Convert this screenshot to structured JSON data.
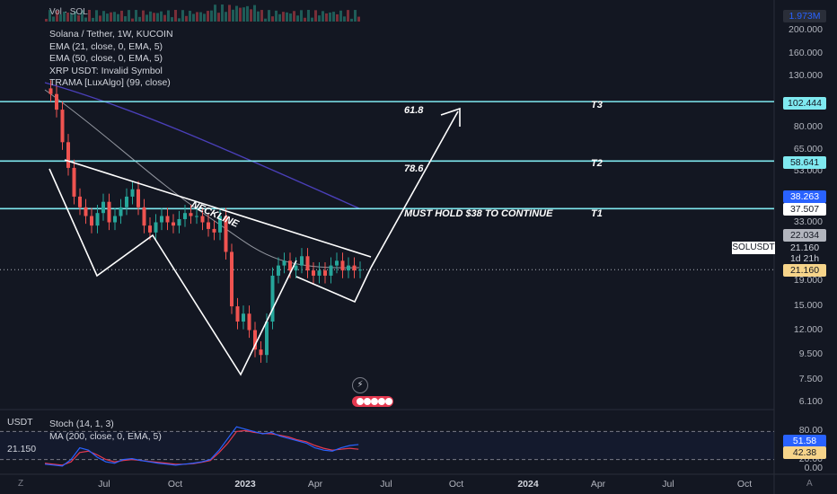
{
  "header": {
    "volume_label": "Vol · SOL",
    "volume_value": "1.973M"
  },
  "legend": {
    "symbol": "Solana / Tether, 1W, KUCOIN",
    "ema21": "EMA (21, close, 0, EMA, 5)",
    "ema50": "EMA (50, close, 0, EMA, 5)",
    "xrp": "XRP USDT: Invalid Symbol",
    "trama": "TRAMA [LuxAlgo] (99, close)"
  },
  "oscillator": {
    "title": "Stoch (14, 1, 3)",
    "ma": "MA (200, close, 0, EMA, 5)",
    "left_currency": "USDT",
    "left_price": "21.150",
    "axis_labels": [
      "80.00",
      "20.00",
      "0.00"
    ],
    "k_tag": "51.58",
    "d_tag": "42.38"
  },
  "price_axis": {
    "labels": [
      "200.000",
      "160.000",
      "130.000",
      "80.000",
      "65.000",
      "53.000",
      "33.000",
      "19.000",
      "15.000",
      "12.000",
      "9.500",
      "7.500",
      "6.100"
    ],
    "tags": {
      "t3": "102.444",
      "t2": "58.641",
      "ema_tag": "38.263",
      "t1": "37.507",
      "trama_tag": "22.034",
      "price": "21.160",
      "countdown": "1d 21h",
      "last": "21.160"
    },
    "ticker": "SOLUSDT",
    "colors": {
      "level_line": "#7fe9f0",
      "up": "#26a69a",
      "down": "#ef5350",
      "ema21": "#b2b5be",
      "ema50": "#4a3fb8",
      "stoch_k": "#2962ff",
      "stoch_d": "#e53950",
      "trama": "#ff9800"
    }
  },
  "time_axis": {
    "labels": [
      "Jul",
      "Oct",
      "2023",
      "Apr",
      "Jul",
      "Oct",
      "2024",
      "Apr",
      "Jul",
      "Oct"
    ],
    "left_icon": "Z",
    "right_icon": "A"
  },
  "annotations": {
    "t3_label": "T3",
    "t2_label": "T2",
    "t1_label": "T1",
    "fib_618": "61.8",
    "fib_786": "78.6",
    "neckline": "NECKLINE",
    "hold_text": "MUST HOLD $38 TO CONTINUE"
  },
  "chart_data": {
    "type": "candlestick",
    "title": "Solana / Tether, 1W, KUCOIN",
    "scale": "log",
    "horizontal_levels": [
      {
        "name": "T3",
        "value": 102.444
      },
      {
        "name": "T2",
        "value": 58.641
      },
      {
        "name": "T1",
        "value": 37.507
      }
    ],
    "last_price": 21.16,
    "price_series_approx": [
      116,
      110,
      95,
      70,
      55,
      42,
      38,
      35,
      32,
      36,
      40,
      33,
      35,
      38,
      42,
      45,
      38,
      32,
      30,
      33,
      35,
      33,
      32,
      34,
      36,
      35,
      35,
      33,
      31,
      30,
      35,
      25,
      15,
      13,
      14,
      12,
      10,
      9.5,
      13,
      20,
      22,
      23,
      21,
      22,
      24,
      21,
      20,
      21,
      20,
      22,
      23,
      21,
      22,
      21,
      21.16
    ],
    "stoch_k_approx": [
      10,
      8,
      6,
      20,
      45,
      40,
      25,
      15,
      12,
      20,
      22,
      18,
      15,
      12,
      10,
      8,
      10,
      12,
      15,
      20,
      40,
      65,
      90,
      85,
      80,
      75,
      78,
      70,
      65,
      60,
      55,
      45,
      40,
      38,
      45,
      50,
      52
    ],
    "stoch_d_approx": [
      12,
      10,
      8,
      15,
      35,
      38,
      30,
      20,
      15,
      18,
      20,
      18,
      16,
      14,
      12,
      10,
      10,
      11,
      14,
      18,
      35,
      55,
      80,
      82,
      78,
      76,
      75,
      72,
      68,
      62,
      58,
      50,
      44,
      40,
      42,
      44,
      42
    ]
  }
}
